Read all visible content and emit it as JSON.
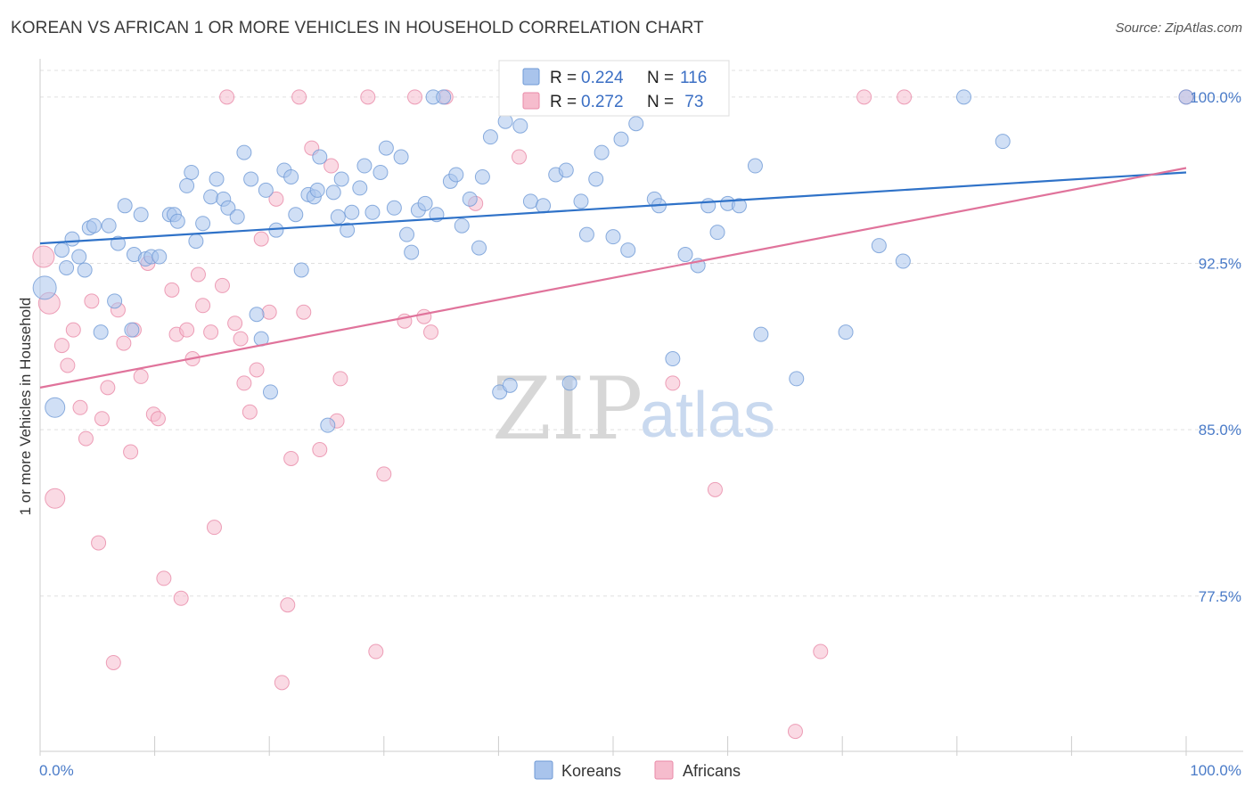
{
  "title": "KOREAN VS AFRICAN 1 OR MORE VEHICLES IN HOUSEHOLD CORRELATION CHART",
  "source": "Source: ZipAtlas.com",
  "watermark": {
    "zip": "ZIP",
    "atlas": "atlas"
  },
  "colors": {
    "koreans_fill": "#a9c4ec",
    "koreans_stroke": "#6f9ad6",
    "koreans_line": "#2f72c8",
    "africans_fill": "#f6bccd",
    "africans_stroke": "#e98aa8",
    "africans_line": "#e0739b",
    "tick_label": "#4a7bc8",
    "grid": "#e0e0e0"
  },
  "legend_stats": [
    {
      "r_label": "R =",
      "r_value": "0.224",
      "n_label": "N =",
      "n_value": "116"
    },
    {
      "r_label": "R =",
      "r_value": "0.272",
      "n_label": "N =",
      "n_value": " 73"
    }
  ],
  "chart_data": {
    "type": "scatter",
    "title": "KOREAN VS AFRICAN 1 OR MORE VEHICLES IN HOUSEHOLD CORRELATION CHART",
    "xlabel": "",
    "ylabel": "1 or more Vehicles in Household",
    "xlim": [
      0,
      100
    ],
    "ylim": [
      70.5,
      101.2
    ],
    "x_tick_labels": [
      "0.0%",
      "100.0%"
    ],
    "y_ticks": [
      77.5,
      85.0,
      92.5,
      100.0
    ],
    "y_tick_labels": [
      "77.5%",
      "85.0%",
      "92.5%",
      "100.0%"
    ],
    "grid": "horizontal dashed",
    "legend_position": "bottom-center",
    "series": [
      {
        "name": "Koreans",
        "trend": {
          "x": [
            0,
            100
          ],
          "y": [
            93.4,
            96.6
          ]
        },
        "points": [
          [
            0.4,
            91.4
          ],
          [
            1.3,
            86.0
          ],
          [
            1.9,
            93.1
          ],
          [
            2.3,
            92.3
          ],
          [
            2.8,
            93.6
          ],
          [
            3.4,
            92.8
          ],
          [
            3.9,
            92.2
          ],
          [
            4.3,
            94.1
          ],
          [
            4.7,
            94.2
          ],
          [
            5.3,
            89.4
          ],
          [
            6.0,
            94.2
          ],
          [
            6.5,
            90.8
          ],
          [
            6.8,
            93.4
          ],
          [
            7.4,
            95.1
          ],
          [
            8.0,
            89.5
          ],
          [
            8.2,
            92.9
          ],
          [
            8.8,
            94.7
          ],
          [
            9.2,
            92.7
          ],
          [
            9.7,
            92.8
          ],
          [
            10.4,
            92.8
          ],
          [
            11.3,
            94.7
          ],
          [
            11.7,
            94.7
          ],
          [
            12.0,
            94.4
          ],
          [
            12.8,
            96.0
          ],
          [
            13.2,
            96.6
          ],
          [
            13.6,
            93.5
          ],
          [
            14.2,
            94.3
          ],
          [
            14.9,
            95.5
          ],
          [
            15.4,
            96.3
          ],
          [
            16.0,
            95.4
          ],
          [
            16.4,
            95.0
          ],
          [
            17.2,
            94.6
          ],
          [
            17.8,
            97.5
          ],
          [
            18.4,
            96.3
          ],
          [
            18.9,
            90.2
          ],
          [
            19.3,
            89.1
          ],
          [
            19.7,
            95.8
          ],
          [
            20.1,
            86.7
          ],
          [
            20.6,
            94.0
          ],
          [
            21.3,
            96.7
          ],
          [
            21.9,
            96.4
          ],
          [
            22.3,
            94.7
          ],
          [
            22.8,
            92.2
          ],
          [
            23.4,
            95.6
          ],
          [
            23.9,
            95.5
          ],
          [
            24.2,
            95.8
          ],
          [
            24.4,
            97.3
          ],
          [
            25.1,
            85.2
          ],
          [
            25.6,
            95.7
          ],
          [
            26.0,
            94.6
          ],
          [
            26.3,
            96.3
          ],
          [
            26.8,
            94.0
          ],
          [
            27.2,
            94.8
          ],
          [
            27.9,
            95.9
          ],
          [
            28.3,
            96.9
          ],
          [
            29.0,
            94.8
          ],
          [
            29.7,
            96.6
          ],
          [
            30.2,
            97.7
          ],
          [
            30.9,
            95.0
          ],
          [
            31.5,
            97.3
          ],
          [
            32.0,
            93.8
          ],
          [
            32.4,
            93.0
          ],
          [
            33.0,
            94.9
          ],
          [
            33.6,
            95.2
          ],
          [
            34.3,
            100.0
          ],
          [
            34.6,
            94.7
          ],
          [
            35.2,
            100.0
          ],
          [
            35.8,
            96.2
          ],
          [
            36.3,
            96.5
          ],
          [
            36.8,
            94.2
          ],
          [
            37.5,
            95.4
          ],
          [
            38.3,
            93.2
          ],
          [
            38.6,
            96.4
          ],
          [
            39.3,
            98.2
          ],
          [
            40.1,
            86.7
          ],
          [
            40.6,
            98.9
          ],
          [
            41.0,
            87.0
          ],
          [
            41.9,
            98.7
          ],
          [
            42.8,
            95.3
          ],
          [
            43.9,
            95.1
          ],
          [
            45.0,
            96.5
          ],
          [
            45.9,
            96.7
          ],
          [
            46.2,
            87.1
          ],
          [
            47.2,
            95.3
          ],
          [
            47.7,
            93.8
          ],
          [
            48.5,
            96.3
          ],
          [
            49.0,
            97.5
          ],
          [
            50.0,
            93.7
          ],
          [
            50.7,
            98.1
          ],
          [
            51.3,
            93.1
          ],
          [
            52.0,
            98.8
          ],
          [
            53.6,
            95.4
          ],
          [
            54.0,
            95.1
          ],
          [
            55.2,
            88.2
          ],
          [
            56.3,
            92.9
          ],
          [
            57.4,
            92.4
          ],
          [
            58.3,
            95.1
          ],
          [
            59.1,
            93.9
          ],
          [
            60.0,
            95.2
          ],
          [
            61.0,
            95.1
          ],
          [
            62.4,
            96.9
          ],
          [
            62.9,
            89.3
          ],
          [
            66.0,
            87.3
          ],
          [
            70.3,
            89.4
          ],
          [
            73.2,
            93.3
          ],
          [
            75.3,
            92.6
          ],
          [
            80.6,
            100.0
          ],
          [
            84.0,
            98.0
          ],
          [
            100.0,
            100.0
          ]
        ]
      },
      {
        "name": "Africans",
        "trend": {
          "x": [
            0,
            100
          ],
          "y": [
            86.9,
            96.8
          ]
        },
        "points": [
          [
            0.3,
            92.8
          ],
          [
            0.8,
            90.7
          ],
          [
            1.3,
            81.9
          ],
          [
            1.9,
            88.8
          ],
          [
            2.4,
            87.9
          ],
          [
            2.9,
            89.5
          ],
          [
            3.5,
            86.0
          ],
          [
            4.0,
            84.6
          ],
          [
            4.5,
            90.8
          ],
          [
            5.1,
            79.9
          ],
          [
            5.4,
            85.5
          ],
          [
            5.9,
            86.9
          ],
          [
            6.4,
            74.5
          ],
          [
            6.8,
            90.4
          ],
          [
            7.3,
            88.9
          ],
          [
            7.9,
            84.0
          ],
          [
            8.2,
            89.5
          ],
          [
            8.8,
            87.4
          ],
          [
            9.4,
            92.5
          ],
          [
            9.9,
            85.7
          ],
          [
            10.3,
            85.5
          ],
          [
            10.8,
            78.3
          ],
          [
            11.5,
            91.3
          ],
          [
            11.9,
            89.3
          ],
          [
            12.3,
            77.4
          ],
          [
            12.8,
            89.5
          ],
          [
            13.3,
            88.2
          ],
          [
            13.8,
            92.0
          ],
          [
            14.2,
            90.6
          ],
          [
            14.9,
            89.4
          ],
          [
            15.2,
            80.6
          ],
          [
            15.9,
            91.5
          ],
          [
            16.3,
            100.0
          ],
          [
            17.0,
            89.8
          ],
          [
            17.5,
            89.1
          ],
          [
            17.8,
            87.1
          ],
          [
            18.3,
            85.8
          ],
          [
            18.9,
            87.7
          ],
          [
            19.3,
            93.6
          ],
          [
            20.0,
            90.3
          ],
          [
            20.6,
            95.4
          ],
          [
            21.1,
            73.6
          ],
          [
            21.6,
            77.1
          ],
          [
            21.9,
            83.7
          ],
          [
            22.6,
            100.0
          ],
          [
            23.0,
            90.3
          ],
          [
            23.7,
            97.7
          ],
          [
            24.4,
            84.1
          ],
          [
            25.4,
            96.9
          ],
          [
            25.9,
            85.4
          ],
          [
            26.2,
            87.3
          ],
          [
            28.6,
            100.0
          ],
          [
            29.3,
            75.0
          ],
          [
            30.0,
            83.0
          ],
          [
            31.8,
            89.9
          ],
          [
            32.7,
            100.0
          ],
          [
            33.5,
            90.1
          ],
          [
            34.1,
            89.4
          ],
          [
            35.4,
            100.0
          ],
          [
            38.0,
            95.2
          ],
          [
            41.8,
            97.3
          ],
          [
            42.5,
            100.0
          ],
          [
            44.3,
            100.0
          ],
          [
            55.2,
            87.1
          ],
          [
            57.4,
            100.0
          ],
          [
            58.9,
            82.3
          ],
          [
            65.9,
            71.4
          ],
          [
            68.1,
            75.0
          ],
          [
            71.9,
            100.0
          ],
          [
            75.4,
            100.0
          ],
          [
            100.0,
            100.0
          ]
        ]
      }
    ]
  },
  "legend_bottom": [
    {
      "label": "Koreans"
    },
    {
      "label": "Africans"
    }
  ]
}
